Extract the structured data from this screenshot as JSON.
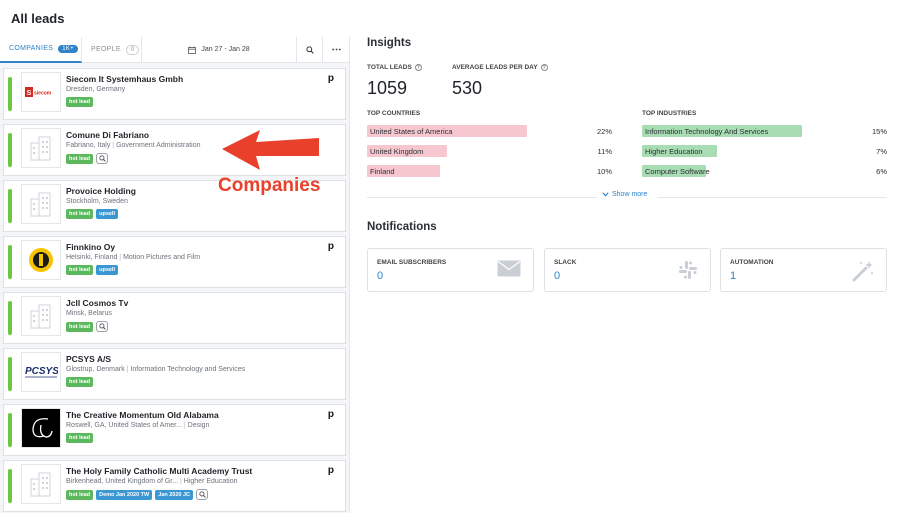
{
  "page_title": "All leads",
  "tabs": {
    "companies_label": "COMPANIES",
    "companies_count": "1K+",
    "people_label": "PEOPLE",
    "people_count": "0",
    "date_range": "Jan 27 - Jan 28"
  },
  "leads": [
    {
      "name": "Siecom It Systemhaus Gmbh",
      "location": "Dresden, Germany",
      "industry": "",
      "tags": [
        "hot lead"
      ],
      "tag_colors": [
        "green"
      ],
      "logo": "siecom-logo",
      "pipedrive": true,
      "inspect": false
    },
    {
      "name": "Comune Di Fabriano",
      "location": "Fabriano, Italy",
      "industry": "Government Administration",
      "tags": [
        "hot lead"
      ],
      "tag_colors": [
        "green"
      ],
      "logo": "building-icon",
      "pipedrive": false,
      "inspect": true
    },
    {
      "name": "Provoice Holding",
      "location": "Stockholm, Sweden",
      "industry": "",
      "tags": [
        "hot lead",
        "upsell"
      ],
      "tag_colors": [
        "green",
        "blue"
      ],
      "logo": "building-icon",
      "pipedrive": false,
      "inspect": false
    },
    {
      "name": "Finnkino Oy",
      "location": "Helsinki, Finland",
      "industry": "Motion Pictures and Film",
      "tags": [
        "hot lead",
        "upsell"
      ],
      "tag_colors": [
        "green",
        "blue"
      ],
      "logo": "finnkino-logo",
      "pipedrive": true,
      "inspect": false
    },
    {
      "name": "Jcll Cosmos Tv",
      "location": "Minsk, Belarus",
      "industry": "",
      "tags": [
        "hot lead"
      ],
      "tag_colors": [
        "green"
      ],
      "logo": "building-icon",
      "pipedrive": false,
      "inspect": true
    },
    {
      "name": "PCSYS A/S",
      "location": "Glostrup, Denmark",
      "industry": "Information Technology and Services",
      "tags": [
        "hot lead"
      ],
      "tag_colors": [
        "green"
      ],
      "logo": "pcsys-logo",
      "pipedrive": false,
      "inspect": false
    },
    {
      "name": "The Creative Momentum Old Alabama",
      "location": "Roswell, GA, United States of Amer...",
      "industry": "Design",
      "tags": [
        "hot lead"
      ],
      "tag_colors": [
        "green"
      ],
      "logo": "creative-momentum-logo",
      "pipedrive": true,
      "inspect": false
    },
    {
      "name": "The Holy Family Catholic Multi Academy Trust",
      "location": "Birkenhead, United Kingdom of Gr...",
      "industry": "Higher Education",
      "tags": [
        "hot lead",
        "Demo Jan 2020 TW",
        "Jan 2020 JC"
      ],
      "tag_colors": [
        "green",
        "blue",
        "blue"
      ],
      "logo": "building-icon",
      "pipedrive": true,
      "inspect": true
    }
  ],
  "annotation": "Companies",
  "insights": {
    "title": "Insights",
    "total_leads_label": "TOTAL LEADS",
    "total_leads_value": "1059",
    "avg_leads_label": "AVERAGE LEADS PER DAY",
    "avg_leads_value": "530",
    "top_countries_label": "TOP COUNTRIES",
    "top_countries": [
      {
        "name": "United States of America",
        "pct": "22%",
        "share": 0.22
      },
      {
        "name": "United Kingdom",
        "pct": "11%",
        "share": 0.11
      },
      {
        "name": "Finland",
        "pct": "10%",
        "share": 0.1
      }
    ],
    "top_industries_label": "TOP INDUSTRIES",
    "top_industries": [
      {
        "name": "Information Technology And Services",
        "pct": "15%",
        "share": 0.15
      },
      {
        "name": "Higher Education",
        "pct": "7%",
        "share": 0.07
      },
      {
        "name": "Computer Software",
        "pct": "6%",
        "share": 0.06
      }
    ],
    "show_more": "Show more"
  },
  "notifications": {
    "title": "Notifications",
    "cards": [
      {
        "label": "EMAIL SUBSCRIBERS",
        "value": "0",
        "icon": "envelope-icon"
      },
      {
        "label": "SLACK",
        "value": "0",
        "icon": "slack-icon"
      },
      {
        "label": "AUTOMATION",
        "value": "1",
        "icon": "magic-wand-icon"
      }
    ]
  },
  "colors": {
    "accent": "#2f83c9",
    "lead_bar": "#6cc644",
    "country_bar": "#f7c7cf",
    "industry_bar": "#a8dcb2",
    "annotation": "#e8402a"
  }
}
